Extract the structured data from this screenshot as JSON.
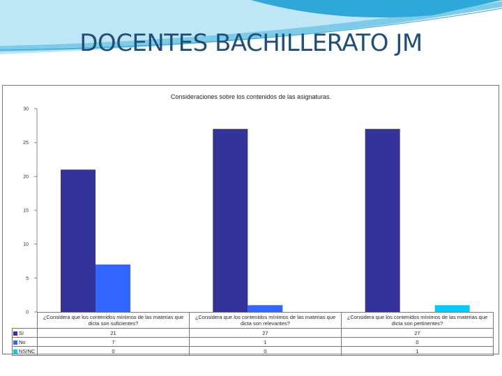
{
  "slide": {
    "title": "DOCENTES BACHILLERATO JM"
  },
  "colors": {
    "swoosh_light": "#bfe6f5",
    "swoosh_mid": "#7ccbe8",
    "swoosh_dark": "#2fa7d8",
    "title": "#1f4e79",
    "gridline": "#bbbbbb"
  },
  "chart_data": {
    "type": "bar",
    "title": "Consideraciones sobre los contenidos de las asignaturas.",
    "categories": [
      "¿Considera que los contenidos mínimos de las materias que dicta son suficientes?",
      "¿Considera que los contenidos mínimos de las materias que dicta son relevantes?",
      "¿Considera que los contenidos mínimos de las materias que dicta son pertinentes?"
    ],
    "series": [
      {
        "name": "Sí",
        "color": "#333399",
        "values": [
          21,
          27,
          27
        ]
      },
      {
        "name": "No",
        "color": "#3366ff",
        "values": [
          7,
          1,
          0
        ]
      },
      {
        "name": "NS/NC",
        "color": "#00ccff",
        "values": [
          0,
          0,
          1
        ]
      }
    ],
    "ylim": [
      0,
      30
    ],
    "yticks": [
      0,
      5,
      10,
      15,
      20,
      25,
      30
    ],
    "grid": false,
    "legend": "data-table-below"
  }
}
